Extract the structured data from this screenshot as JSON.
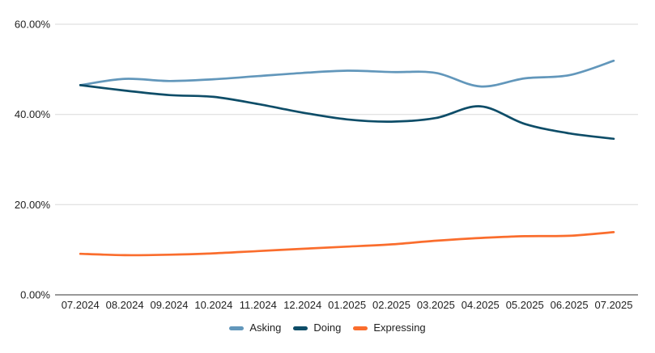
{
  "chart_data": {
    "type": "line",
    "title": "",
    "xlabel": "",
    "ylabel": "",
    "categories": [
      "07.2024",
      "08.2024",
      "09.2024",
      "10.2024",
      "11.2024",
      "12.2024",
      "01.2025",
      "02.2025",
      "03.2025",
      "04.2025",
      "05.2025",
      "06.2025",
      "07.2025"
    ],
    "series": [
      {
        "name": "Asking",
        "color": "#6297BB",
        "values": [
          46.5,
          47.9,
          47.4,
          47.8,
          48.5,
          49.2,
          49.7,
          49.4,
          49.2,
          46.2,
          48.0,
          48.7,
          51.9
        ]
      },
      {
        "name": "Doing",
        "color": "#0E4D68",
        "values": [
          46.5,
          45.3,
          44.3,
          43.9,
          42.3,
          40.4,
          38.9,
          38.4,
          39.2,
          41.8,
          37.9,
          35.8,
          34.6
        ]
      },
      {
        "name": "Expressing",
        "color": "#FA6D2D",
        "values": [
          9.1,
          8.8,
          8.9,
          9.2,
          9.7,
          10.2,
          10.7,
          11.2,
          12.0,
          12.6,
          13.0,
          13.1,
          13.9
        ]
      }
    ],
    "ylim": [
      0,
      60
    ],
    "y_ticks": [
      {
        "value": 0,
        "label": "0.00%"
      },
      {
        "value": 20,
        "label": "20.00%"
      },
      {
        "value": 40,
        "label": "40.00%"
      },
      {
        "value": 60,
        "label": "60.00%"
      }
    ],
    "grid": true,
    "legend_position": "bottom",
    "line_style": "smooth",
    "colors": {
      "background": "#ffffff",
      "gridline": "#d9d9d9",
      "axis_line": "#333333",
      "tick_label": "#1f1f1f",
      "legend_label": "#1f1f1f"
    }
  }
}
